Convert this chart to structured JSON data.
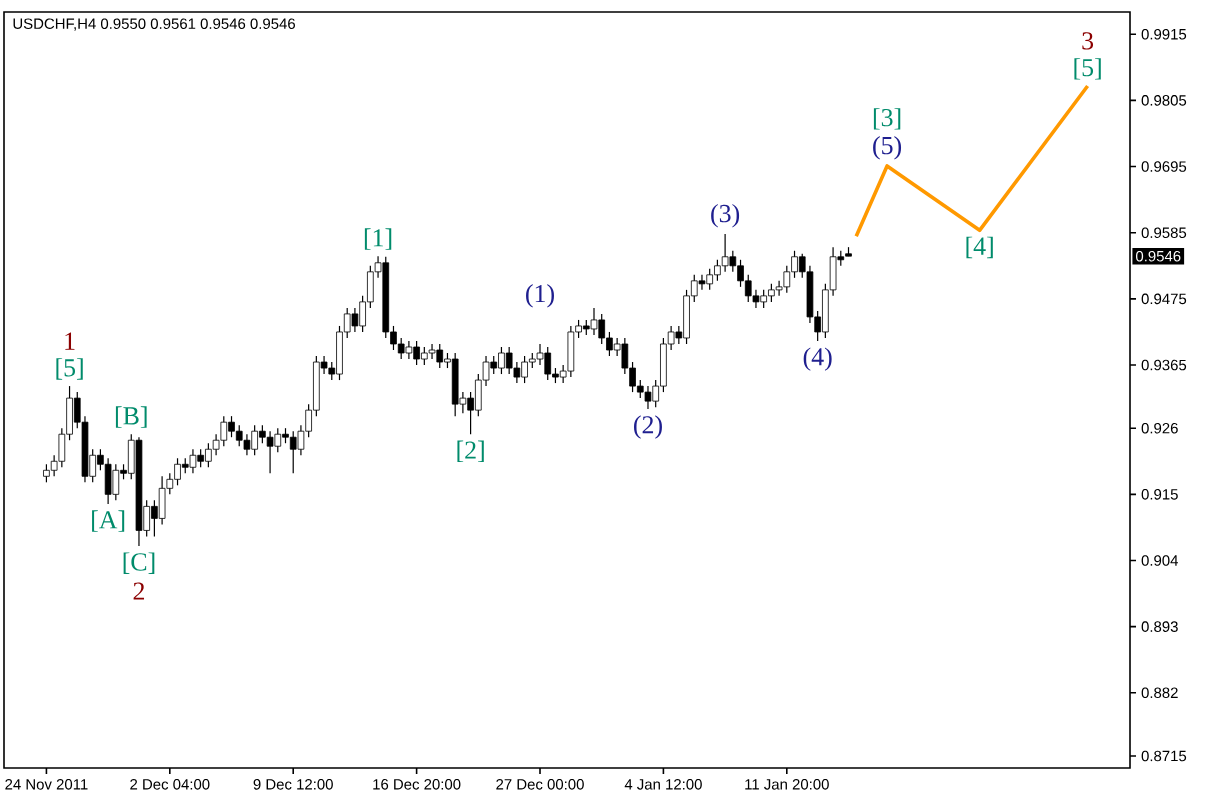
{
  "chart_data": {
    "type": "candlestick",
    "title": "USDCHF,H4  0.9550 0.9561 0.9546 0.9546",
    "categories": [
      "24 Nov 2011",
      null,
      null,
      null,
      null,
      null,
      null,
      null,
      null,
      null,
      null,
      null,
      null,
      null,
      null,
      null,
      "2 Dec 04:00",
      null,
      null,
      null,
      null,
      null,
      null,
      null,
      null,
      null,
      null,
      null,
      null,
      null,
      null,
      null,
      "9 Dec 12:00",
      null,
      null,
      null,
      null,
      null,
      null,
      null,
      null,
      null,
      null,
      null,
      null,
      null,
      null,
      null,
      "16 Dec 20:00",
      null,
      null,
      null,
      null,
      null,
      null,
      null,
      null,
      null,
      null,
      null,
      null,
      null,
      null,
      null,
      "27 Dec 00:00",
      null,
      null,
      null,
      null,
      null,
      null,
      null,
      null,
      null,
      null,
      null,
      null,
      null,
      null,
      null,
      "4 Jan 12:00",
      null,
      null,
      null,
      null,
      null,
      null,
      null,
      null,
      null,
      null,
      null,
      null,
      null,
      null,
      null,
      "11 Jan 20:00",
      null,
      null,
      null,
      null,
      null,
      null,
      null,
      null,
      null,
      null,
      null,
      null,
      null,
      null,
      null,
      null,
      null,
      null,
      null,
      null,
      null,
      null,
      null,
      null,
      null,
      null,
      null,
      null,
      null,
      null,
      null,
      null,
      null,
      null,
      null,
      null,
      null,
      null,
      null,
      null,
      null,
      null,
      null,
      null
    ],
    "ohlc": [
      [
        0.918,
        0.92,
        0.917,
        0.919
      ],
      [
        0.919,
        0.9215,
        0.918,
        0.9205
      ],
      [
        0.9205,
        0.926,
        0.9195,
        0.925
      ],
      [
        0.925,
        0.933,
        0.924,
        0.931
      ],
      [
        0.931,
        0.932,
        0.926,
        0.927
      ],
      [
        0.927,
        0.928,
        0.917,
        0.918
      ],
      [
        0.918,
        0.9225,
        0.917,
        0.9215
      ],
      [
        0.9215,
        0.9225,
        0.919,
        0.92
      ],
      [
        0.92,
        0.921,
        0.9134,
        0.915
      ],
      [
        0.915,
        0.92,
        0.914,
        0.919
      ],
      [
        0.919,
        0.92,
        0.9175,
        0.9185
      ],
      [
        0.9185,
        0.925,
        0.9175,
        0.924
      ],
      [
        0.924,
        0.9245,
        0.9064,
        0.909
      ],
      [
        0.909,
        0.914,
        0.908,
        0.913
      ],
      [
        0.913,
        0.914,
        0.908,
        0.911
      ],
      [
        0.911,
        0.918,
        0.91,
        0.916
      ],
      [
        0.916,
        0.9185,
        0.915,
        0.9175
      ],
      [
        0.9175,
        0.921,
        0.9165,
        0.92
      ],
      [
        0.92,
        0.921,
        0.9185,
        0.9195
      ],
      [
        0.9195,
        0.9225,
        0.9185,
        0.9215
      ],
      [
        0.9215,
        0.9225,
        0.9195,
        0.9205
      ],
      [
        0.9205,
        0.9235,
        0.9195,
        0.9225
      ],
      [
        0.9225,
        0.925,
        0.9215,
        0.924
      ],
      [
        0.924,
        0.928,
        0.923,
        0.927
      ],
      [
        0.927,
        0.928,
        0.9245,
        0.9255
      ],
      [
        0.9255,
        0.9265,
        0.923,
        0.924
      ],
      [
        0.924,
        0.925,
        0.9215,
        0.9225
      ],
      [
        0.9225,
        0.9265,
        0.9215,
        0.9255
      ],
      [
        0.9255,
        0.9265,
        0.9235,
        0.9245
      ],
      [
        0.9245,
        0.9255,
        0.9185,
        0.923
      ],
      [
        0.923,
        0.926,
        0.922,
        0.925
      ],
      [
        0.925,
        0.926,
        0.9235,
        0.9245
      ],
      [
        0.9245,
        0.9255,
        0.9185,
        0.9225
      ],
      [
        0.9225,
        0.9265,
        0.9215,
        0.9255
      ],
      [
        0.9255,
        0.93,
        0.9245,
        0.929
      ],
      [
        0.929,
        0.938,
        0.928,
        0.937
      ],
      [
        0.937,
        0.938,
        0.935,
        0.936
      ],
      [
        0.936,
        0.937,
        0.934,
        0.935
      ],
      [
        0.935,
        0.943,
        0.934,
        0.942
      ],
      [
        0.942,
        0.946,
        0.941,
        0.945
      ],
      [
        0.945,
        0.946,
        0.942,
        0.943
      ],
      [
        0.943,
        0.948,
        0.942,
        0.947
      ],
      [
        0.947,
        0.953,
        0.946,
        0.952
      ],
      [
        0.952,
        0.9546,
        0.951,
        0.9535
      ],
      [
        0.9535,
        0.9545,
        0.941,
        0.942
      ],
      [
        0.942,
        0.943,
        0.939,
        0.94
      ],
      [
        0.94,
        0.941,
        0.9375,
        0.9385
      ],
      [
        0.9385,
        0.9405,
        0.9375,
        0.9395
      ],
      [
        0.9395,
        0.9405,
        0.9365,
        0.9375
      ],
      [
        0.9375,
        0.9395,
        0.9365,
        0.9385
      ],
      [
        0.9385,
        0.94,
        0.9375,
        0.939
      ],
      [
        0.939,
        0.94,
        0.936,
        0.937
      ],
      [
        0.937,
        0.9385,
        0.936,
        0.9375
      ],
      [
        0.9375,
        0.9385,
        0.928,
        0.93
      ],
      [
        0.93,
        0.932,
        0.9285,
        0.931
      ],
      [
        0.931,
        0.932,
        0.925,
        0.929
      ],
      [
        0.929,
        0.935,
        0.928,
        0.934
      ],
      [
        0.934,
        0.938,
        0.933,
        0.937
      ],
      [
        0.937,
        0.938,
        0.935,
        0.936
      ],
      [
        0.936,
        0.9395,
        0.935,
        0.9385
      ],
      [
        0.9385,
        0.9395,
        0.935,
        0.936
      ],
      [
        0.936,
        0.937,
        0.9335,
        0.9345
      ],
      [
        0.9345,
        0.938,
        0.9335,
        0.937
      ],
      [
        0.937,
        0.9385,
        0.936,
        0.9375
      ],
      [
        0.9375,
        0.94,
        0.9365,
        0.9385
      ],
      [
        0.9385,
        0.9395,
        0.934,
        0.935
      ],
      [
        0.935,
        0.936,
        0.9335,
        0.9345
      ],
      [
        0.9345,
        0.9365,
        0.9335,
        0.9355
      ],
      [
        0.9355,
        0.943,
        0.9345,
        0.942
      ],
      [
        0.942,
        0.944,
        0.941,
        0.943
      ],
      [
        0.943,
        0.944,
        0.9415,
        0.9425
      ],
      [
        0.9425,
        0.946,
        0.9415,
        0.944
      ],
      [
        0.944,
        0.945,
        0.94,
        0.941
      ],
      [
        0.941,
        0.942,
        0.938,
        0.939
      ],
      [
        0.939,
        0.941,
        0.938,
        0.94
      ],
      [
        0.94,
        0.941,
        0.935,
        0.936
      ],
      [
        0.936,
        0.937,
        0.932,
        0.933
      ],
      [
        0.933,
        0.934,
        0.931,
        0.932
      ],
      [
        0.932,
        0.933,
        0.9292,
        0.9305
      ],
      [
        0.9305,
        0.934,
        0.9295,
        0.933
      ],
      [
        0.933,
        0.941,
        0.932,
        0.94
      ],
      [
        0.94,
        0.943,
        0.939,
        0.942
      ],
      [
        0.942,
        0.943,
        0.94,
        0.941
      ],
      [
        0.941,
        0.949,
        0.94,
        0.948
      ],
      [
        0.948,
        0.9515,
        0.947,
        0.9505
      ],
      [
        0.9505,
        0.9515,
        0.949,
        0.95
      ],
      [
        0.95,
        0.9525,
        0.949,
        0.9515
      ],
      [
        0.9515,
        0.954,
        0.9505,
        0.953
      ],
      [
        0.953,
        0.9583,
        0.952,
        0.9545
      ],
      [
        0.9545,
        0.9555,
        0.952,
        0.953
      ],
      [
        0.953,
        0.954,
        0.9495,
        0.9505
      ],
      [
        0.9505,
        0.9515,
        0.947,
        0.948
      ],
      [
        0.948,
        0.949,
        0.946,
        0.947
      ],
      [
        0.947,
        0.949,
        0.946,
        0.948
      ],
      [
        0.948,
        0.95,
        0.947,
        0.949
      ],
      [
        0.949,
        0.9505,
        0.948,
        0.9495
      ],
      [
        0.9495,
        0.953,
        0.9485,
        0.952
      ],
      [
        0.952,
        0.9555,
        0.951,
        0.9545
      ],
      [
        0.9545,
        0.955,
        0.951,
        0.952
      ],
      [
        0.952,
        0.953,
        0.9435,
        0.9445
      ],
      [
        0.9445,
        0.9455,
        0.9405,
        0.942
      ],
      [
        0.942,
        0.95,
        0.941,
        0.949
      ],
      [
        0.949,
        0.9561,
        0.948,
        0.9545
      ],
      [
        0.9545,
        0.9555,
        0.953,
        0.954
      ],
      [
        0.955,
        0.9561,
        0.9546,
        0.9546
      ],
      null,
      null,
      null,
      null,
      null,
      null,
      null,
      null,
      null,
      null,
      null,
      null,
      null,
      null,
      null,
      null,
      null,
      null,
      null,
      null,
      null,
      null,
      null,
      null,
      null,
      null,
      null,
      null,
      null,
      null,
      null,
      null,
      null,
      null,
      null,
      null
    ],
    "series": [
      {
        "type": "line",
        "color": "#ff9900",
        "values": [
          null,
          null,
          null,
          null,
          null,
          null,
          null,
          null,
          null,
          null,
          null,
          null,
          null,
          null,
          null,
          null,
          null,
          null,
          null,
          null,
          null,
          null,
          null,
          null,
          null,
          null,
          null,
          null,
          null,
          null,
          null,
          null,
          null,
          null,
          null,
          null,
          null,
          null,
          null,
          null,
          null,
          null,
          null,
          null,
          null,
          null,
          null,
          null,
          null,
          null,
          null,
          null,
          null,
          null,
          null,
          null,
          null,
          null,
          null,
          null,
          null,
          null,
          null,
          null,
          null,
          null,
          null,
          null,
          null,
          null,
          null,
          null,
          null,
          null,
          null,
          null,
          null,
          null,
          null,
          null,
          null,
          null,
          null,
          null,
          null,
          null,
          null,
          null,
          null,
          null,
          null,
          null,
          null,
          null,
          null,
          null,
          null,
          null,
          null,
          null,
          null,
          null,
          null,
          null,
          null,
          0.9579,
          null,
          null,
          null,
          0.9696,
          null,
          null,
          null,
          null,
          null,
          null,
          null,
          null,
          null,
          null,
          null,
          0.9589,
          null,
          null,
          null,
          null,
          null,
          null,
          null,
          null,
          null,
          null,
          null,
          null,
          null,
          0.9829,
          null,
          null,
          null,
          null,
          null
        ]
      }
    ],
    "ylim": [
      0.8695,
      0.9952
    ],
    "yticks": [
      0.9915,
      0.9805,
      0.9695,
      0.9585,
      0.9475,
      0.9365,
      0.926,
      0.915,
      0.904,
      0.893,
      0.882,
      0.8715
    ],
    "annotations": [
      {
        "text": "1",
        "y": 0.933
      },
      {
        "text": "[5]",
        "y": 0.933
      },
      {
        "text": "[B]",
        "y": 0.925
      },
      {
        "text": "[A]",
        "y": 0.9134
      },
      {
        "text": "[C]",
        "y": 0.9064
      },
      {
        "text": "2",
        "y": 0.9064
      },
      {
        "text": "[1]",
        "y": 0.9546
      },
      {
        "text": "[2]",
        "y": 0.925
      },
      {
        "text": "(1)",
        "y": 0.94
      },
      {
        "text": "(2)",
        "y": 0.9292
      },
      {
        "text": "(3)",
        "y": 0.9583
      },
      {
        "text": "(4)",
        "y": 0.9405
      },
      {
        "text": "[3]",
        "y": 0.9696
      },
      {
        "text": "(5)",
        "y": 0.9696
      },
      {
        "text": "[4]",
        "y": 0.9589
      },
      {
        "text": "3",
        "y": 0.9829
      },
      {
        "text": "[5]",
        "y": 0.9829
      },
      {
        "text": "0.9546",
        "y": 0.9546
      }
    ]
  }
}
